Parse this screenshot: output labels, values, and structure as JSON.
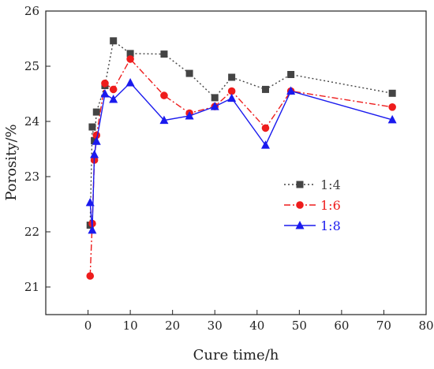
{
  "chart_data": {
    "type": "line",
    "title": "",
    "xlabel": "Cure time/h",
    "ylabel": "Porosity/%",
    "xlim": [
      -10,
      80
    ],
    "ylim": [
      20.5,
      26
    ],
    "xticks": [
      0,
      10,
      20,
      30,
      40,
      50,
      60,
      70,
      80
    ],
    "yticks": [
      21,
      22,
      23,
      24,
      25,
      26
    ],
    "grid": false,
    "legend_position": "center-right",
    "series": [
      {
        "name": "1:4",
        "color": "#444444",
        "line_style": "dotted",
        "marker": "square",
        "x": [
          0.5,
          1,
          1.5,
          2,
          4,
          6,
          10,
          18,
          24,
          30,
          34,
          42,
          48,
          72
        ],
        "y": [
          22.12,
          23.9,
          23.65,
          24.17,
          24.65,
          25.46,
          25.23,
          25.22,
          24.87,
          24.43,
          24.8,
          24.58,
          24.85,
          24.51
        ]
      },
      {
        "name": "1:6",
        "color": "#ee1c1c",
        "line_style": "dash-dot",
        "marker": "circle",
        "x": [
          0.5,
          1,
          1.5,
          2,
          4,
          6,
          10,
          18,
          24,
          30,
          34,
          42,
          48,
          72
        ],
        "y": [
          21.2,
          22.15,
          23.3,
          23.75,
          24.69,
          24.58,
          25.13,
          24.47,
          24.15,
          24.27,
          24.55,
          23.88,
          24.55,
          24.26
        ]
      },
      {
        "name": "1:8",
        "color": "#1a1aee",
        "line_style": "solid",
        "marker": "triangle",
        "x": [
          0.5,
          1,
          1.5,
          2,
          4,
          6,
          10,
          18,
          24,
          30,
          34,
          42,
          48,
          72
        ],
        "y": [
          22.53,
          22.03,
          23.4,
          23.64,
          24.5,
          24.4,
          24.7,
          24.02,
          24.1,
          24.27,
          24.42,
          23.57,
          24.55,
          24.03
        ]
      }
    ]
  }
}
